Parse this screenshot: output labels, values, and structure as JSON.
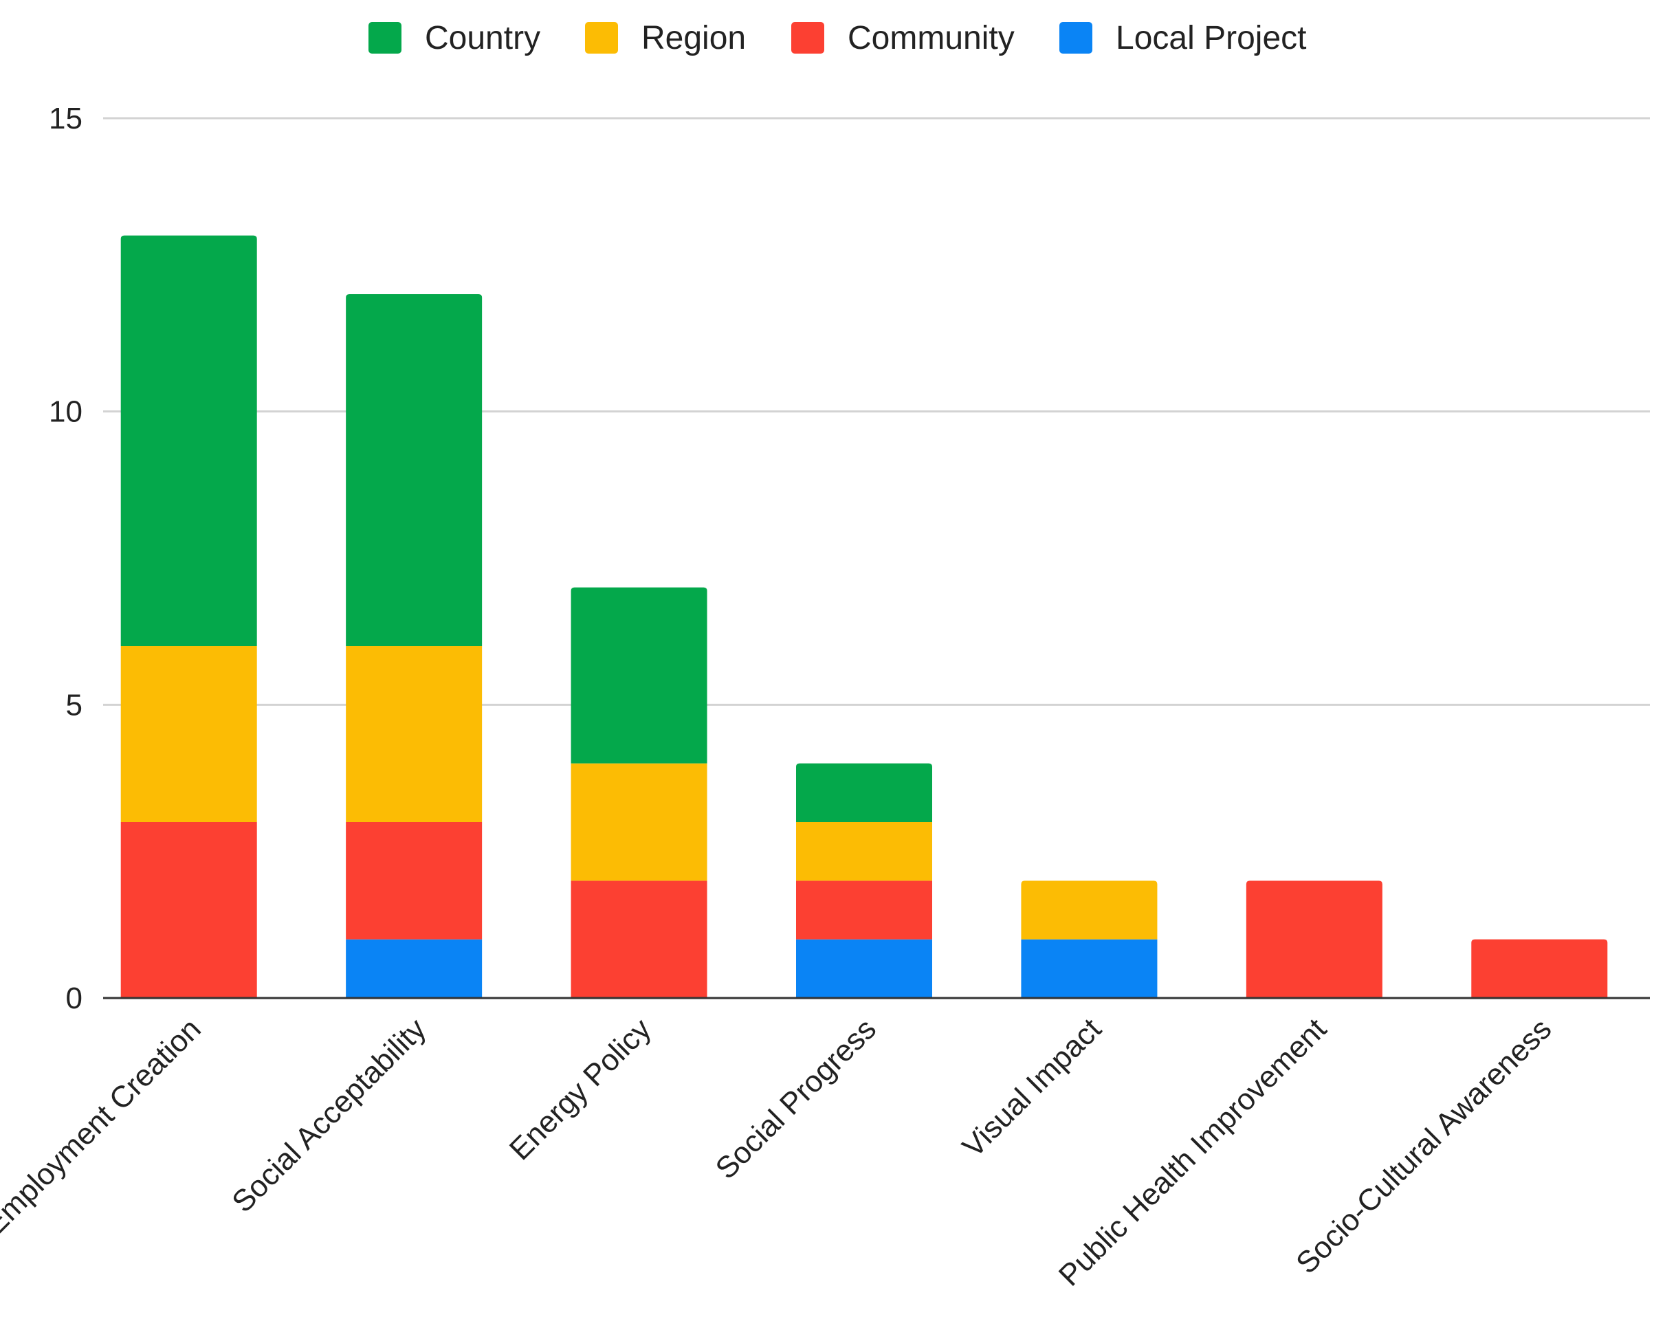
{
  "chart_data": {
    "type": "bar",
    "stacked": true,
    "title": "",
    "xlabel": "",
    "ylabel": "",
    "ylim": [
      0,
      15
    ],
    "yticks": [
      "0",
      "5",
      "10",
      "15"
    ],
    "grid": true,
    "legend_position": "top",
    "categories": [
      "Employment Creation",
      "Social Acceptability",
      "Energy Policy",
      "Social Progress",
      "Visual Impact",
      "Public Health Improvement",
      "Socio-Cultural Awareness"
    ],
    "series": [
      {
        "name": "Local Project",
        "color": "#0a84f5",
        "values": [
          0,
          1,
          0,
          1,
          1,
          0,
          0
        ]
      },
      {
        "name": "Community",
        "color": "#fc4032",
        "values": [
          3,
          2,
          2,
          1,
          0,
          2,
          1
        ]
      },
      {
        "name": "Region",
        "color": "#fcbc04",
        "values": [
          3,
          3,
          2,
          1,
          1,
          0,
          0
        ]
      },
      {
        "name": "Country",
        "color": "#04a84b",
        "values": [
          7,
          6,
          3,
          1,
          0,
          0,
          0
        ]
      }
    ],
    "legend_order": [
      "Country",
      "Region",
      "Community",
      "Local Project"
    ]
  }
}
